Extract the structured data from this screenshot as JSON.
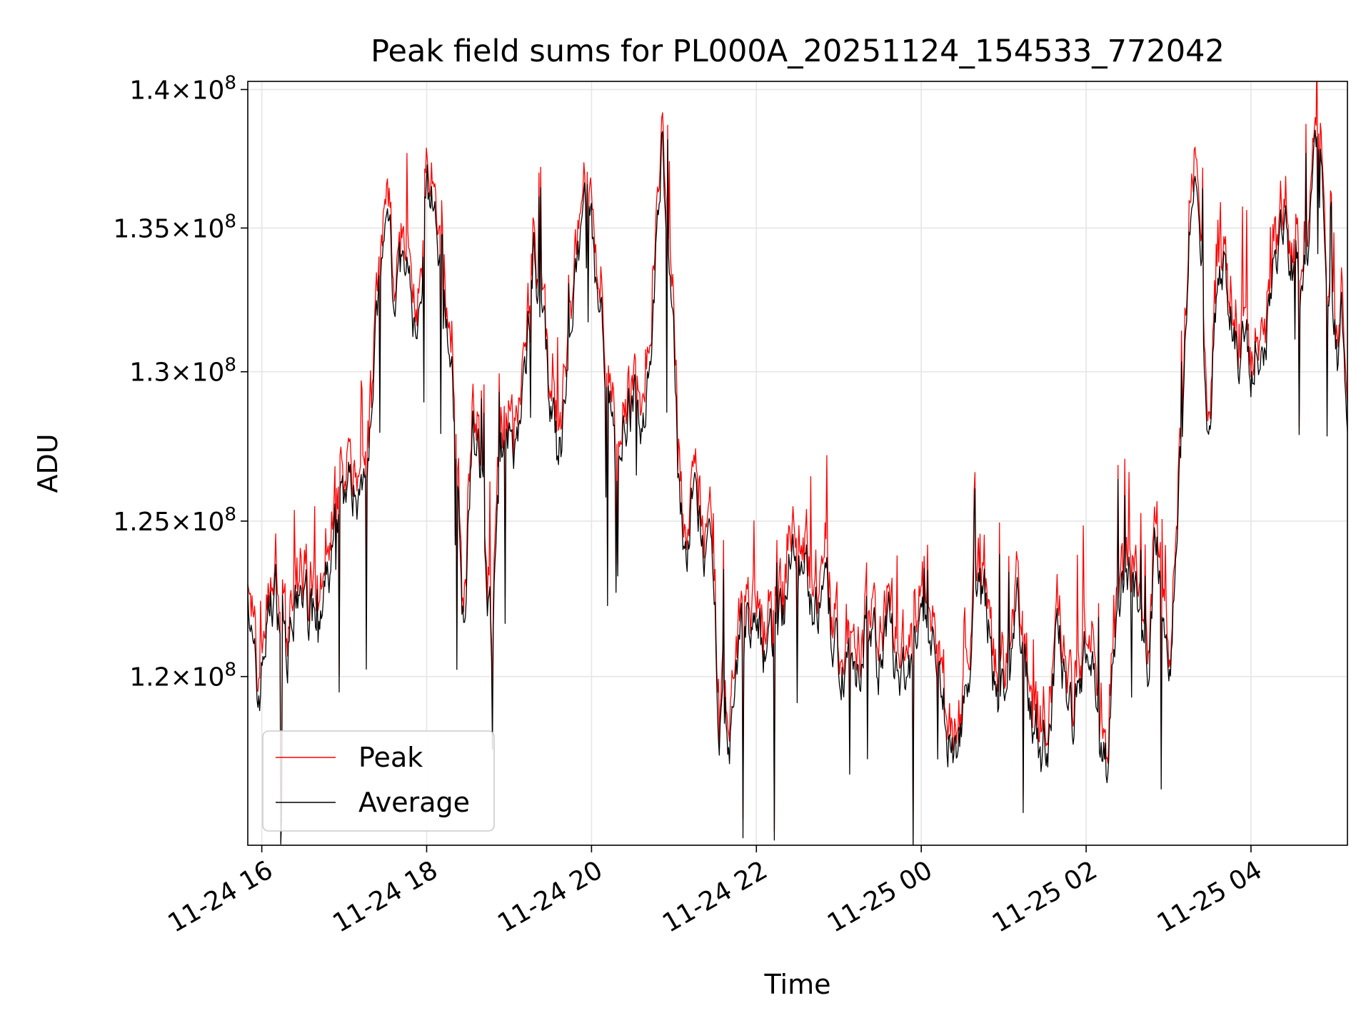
{
  "chart_data": {
    "type": "line",
    "title": "Peak field sums for PL000A_20251124_154533_772042",
    "xlabel": "Time",
    "ylabel": "ADU",
    "grid": true,
    "legend_position": "lower-left",
    "x_range_hours": [
      15.83,
      29.17
    ],
    "y_range": [
      114800000,
      140300000
    ],
    "x_ticks": [
      {
        "hour": 16,
        "label": "11-24 16"
      },
      {
        "hour": 18,
        "label": "11-24 18"
      },
      {
        "hour": 20,
        "label": "11-24 20"
      },
      {
        "hour": 22,
        "label": "11-24 22"
      },
      {
        "hour": 24,
        "label": "11-25 00"
      },
      {
        "hour": 26,
        "label": "11-25 02"
      },
      {
        "hour": 28,
        "label": "11-25 04"
      }
    ],
    "y_ticks": [
      {
        "value": 120000000,
        "mantissa": "1.2",
        "exponent": "8"
      },
      {
        "value": 125000000,
        "mantissa": "1.25",
        "exponent": "8"
      },
      {
        "value": 130000000,
        "mantissa": "1.3",
        "exponent": "8"
      },
      {
        "value": 135000000,
        "mantissa": "1.35",
        "exponent": "8"
      },
      {
        "value": 140000000,
        "mantissa": "1.4",
        "exponent": "8"
      }
    ],
    "tick_times_symbol": "×",
    "tick_base": "10",
    "series": [
      {
        "name": "Peak",
        "color": "#ff0000",
        "offset": 250000,
        "spike_amp": 1000000
      },
      {
        "name": "Average",
        "color": "#000000",
        "offset": 0,
        "spike_amp": 0
      }
    ],
    "average_keypoints": [
      [
        15.83,
        123.5
      ],
      [
        15.9,
        120.2
      ],
      [
        15.95,
        119.0
      ],
      [
        16.05,
        121.5
      ],
      [
        16.15,
        122.8
      ],
      [
        16.3,
        121.0
      ],
      [
        16.45,
        122.5
      ],
      [
        16.6,
        122.0
      ],
      [
        16.7,
        121.2
      ],
      [
        16.8,
        123.0
      ],
      [
        16.95,
        125.5
      ],
      [
        17.1,
        126.3
      ],
      [
        17.2,
        126.0
      ],
      [
        17.3,
        128.8
      ],
      [
        17.4,
        131.8
      ],
      [
        17.5,
        134.5
      ],
      [
        17.55,
        135.8
      ],
      [
        17.6,
        133.0
      ],
      [
        17.7,
        133.5
      ],
      [
        17.8,
        132.5
      ],
      [
        17.9,
        131.0
      ],
      [
        17.95,
        133.8
      ],
      [
        18.0,
        137.0
      ],
      [
        18.05,
        135.5
      ],
      [
        18.1,
        136.0
      ],
      [
        18.15,
        135.0
      ],
      [
        18.2,
        133.5
      ],
      [
        18.3,
        130.0
      ],
      [
        18.35,
        127.0
      ],
      [
        18.4,
        124.0
      ],
      [
        18.45,
        121.8
      ],
      [
        18.55,
        128.5
      ],
      [
        18.65,
        126.5
      ],
      [
        18.7,
        124.5
      ],
      [
        18.8,
        121.0
      ],
      [
        18.9,
        128.0
      ],
      [
        19.0,
        127.0
      ],
      [
        19.1,
        128.0
      ],
      [
        19.2,
        130.0
      ],
      [
        19.3,
        134.5
      ],
      [
        19.4,
        131.5
      ],
      [
        19.5,
        129.0
      ],
      [
        19.6,
        126.5
      ],
      [
        19.7,
        129.5
      ],
      [
        19.85,
        134.0
      ],
      [
        19.95,
        136.5
      ],
      [
        20.05,
        133.0
      ],
      [
        20.15,
        131.0
      ],
      [
        20.25,
        129.0
      ],
      [
        20.3,
        126.0
      ],
      [
        20.4,
        128.5
      ],
      [
        20.5,
        129.0
      ],
      [
        20.6,
        128.0
      ],
      [
        20.7,
        130.5
      ],
      [
        20.8,
        134.5
      ],
      [
        20.85,
        138.0
      ],
      [
        20.95,
        133.0
      ],
      [
        21.0,
        130.0
      ],
      [
        21.05,
        127.0
      ],
      [
        21.15,
        123.5
      ],
      [
        21.25,
        126.0
      ],
      [
        21.35,
        124.0
      ],
      [
        21.45,
        123.0
      ],
      [
        21.55,
        119.0
      ],
      [
        21.7,
        118.5
      ],
      [
        21.8,
        121.0
      ],
      [
        21.9,
        122.0
      ],
      [
        22.05,
        121.0
      ],
      [
        22.2,
        121.0
      ],
      [
        22.3,
        121.5
      ],
      [
        22.45,
        124.5
      ],
      [
        22.55,
        124.0
      ],
      [
        22.65,
        123.0
      ],
      [
        22.75,
        122.0
      ],
      [
        22.85,
        122.5
      ],
      [
        22.95,
        120.5
      ],
      [
        23.05,
        120.5
      ],
      [
        23.2,
        120.5
      ],
      [
        23.35,
        121.5
      ],
      [
        23.5,
        120.5
      ],
      [
        23.6,
        121.5
      ],
      [
        23.7,
        120.0
      ],
      [
        23.8,
        119.5
      ],
      [
        23.9,
        120.5
      ],
      [
        24.0,
        121.0
      ],
      [
        24.1,
        121.5
      ],
      [
        24.2,
        120.0
      ],
      [
        24.3,
        118.5
      ],
      [
        24.4,
        117.8
      ],
      [
        24.5,
        119.0
      ],
      [
        24.6,
        120.5
      ],
      [
        24.7,
        122.5
      ],
      [
        24.8,
        122.0
      ],
      [
        24.95,
        119.0
      ],
      [
        25.05,
        120.5
      ],
      [
        25.15,
        122.0
      ],
      [
        25.25,
        121.0
      ],
      [
        25.35,
        118.5
      ],
      [
        25.45,
        117.8
      ],
      [
        25.55,
        118.5
      ],
      [
        25.65,
        121.0
      ],
      [
        25.75,
        120.0
      ],
      [
        25.85,
        119.0
      ],
      [
        25.95,
        120.5
      ],
      [
        26.05,
        121.0
      ],
      [
        26.15,
        119.0
      ],
      [
        26.25,
        117.0
      ],
      [
        26.35,
        120.5
      ],
      [
        26.45,
        123.0
      ],
      [
        26.55,
        123.5
      ],
      [
        26.65,
        121.0
      ],
      [
        26.75,
        121.0
      ],
      [
        26.85,
        124.5
      ],
      [
        26.95,
        121.5
      ],
      [
        27.0,
        120.5
      ],
      [
        27.1,
        124.0
      ],
      [
        27.2,
        130.5
      ],
      [
        27.25,
        134.5
      ],
      [
        27.3,
        136.5
      ],
      [
        27.35,
        136.0
      ],
      [
        27.4,
        134.5
      ],
      [
        27.45,
        129.0
      ],
      [
        27.5,
        127.0
      ],
      [
        27.55,
        132.0
      ],
      [
        27.6,
        133.5
      ],
      [
        27.7,
        133.0
      ],
      [
        27.8,
        132.0
      ],
      [
        27.85,
        131.0
      ],
      [
        27.95,
        130.5
      ],
      [
        28.0,
        128.5
      ],
      [
        28.05,
        131.0
      ],
      [
        28.15,
        130.0
      ],
      [
        28.25,
        133.5
      ],
      [
        28.35,
        135.0
      ],
      [
        28.45,
        134.0
      ],
      [
        28.5,
        133.5
      ],
      [
        28.6,
        132.5
      ],
      [
        28.7,
        134.0
      ],
      [
        28.8,
        137.5
      ],
      [
        28.85,
        138.5
      ],
      [
        28.9,
        134.5
      ],
      [
        28.95,
        133.0
      ],
      [
        29.0,
        131.5
      ],
      [
        29.05,
        130.5
      ],
      [
        29.1,
        132.0
      ],
      [
        29.17,
        128.0
      ]
    ],
    "sample_count": 1300,
    "noise_seed": 7
  }
}
